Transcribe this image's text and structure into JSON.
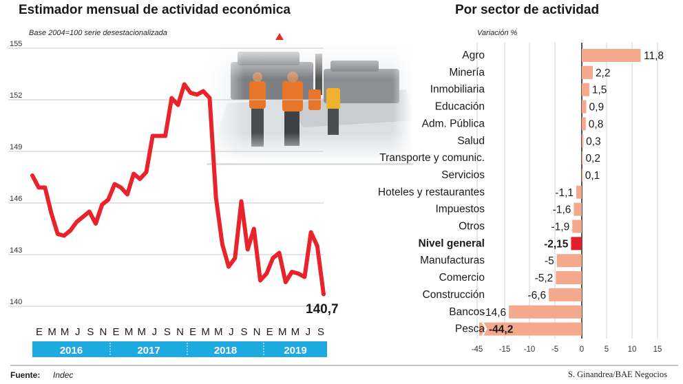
{
  "colors": {
    "line": "#e8232b",
    "bar": "#f4a88c",
    "bar_highlight": "#e0202a",
    "year_band": "#1ea9e1",
    "grid": "#c8c8c8"
  },
  "left_chart": {
    "title": "Estimador mensual de actividad económica",
    "subtitle": "Base 2004=100 serie desestacionalizada",
    "last_value_label": "140,7",
    "chart_data": {
      "type": "line",
      "y_ticks": [
        "155",
        "152",
        "149",
        "146",
        "143",
        "140"
      ],
      "ylim": [
        140,
        155
      ],
      "month_labels": [
        "E",
        "M",
        "M",
        "J",
        "S",
        "N",
        "E",
        "M",
        "M",
        "J",
        "S",
        "N",
        "E",
        "M",
        "M",
        "J",
        "S",
        "N",
        "E",
        "M",
        "M",
        "J",
        "S"
      ],
      "years": [
        "2016",
        "2017",
        "2018",
        "2019"
      ],
      "series": [
        {
          "values": [
            147.6,
            146.9,
            146.9,
            145.4,
            144.2,
            144.1,
            144.4,
            144.9,
            145.2,
            145.5,
            144.8,
            145.9,
            146.2,
            147.1,
            146.9,
            146.5,
            147.7,
            147.4,
            147.8,
            149.9,
            149.9,
            149.9,
            152.1,
            151.7,
            152.9,
            152.4,
            152.3,
            152.5,
            152.1,
            146.3,
            143.6,
            142.3,
            142.8,
            146.1,
            143.3,
            144.5,
            141.5,
            141.9,
            142.8,
            143.1,
            141.4,
            142.0,
            141.9,
            141.7,
            144.3,
            143.5,
            140.7
          ]
        }
      ]
    }
  },
  "right_chart": {
    "title": "Por sector de actividad",
    "subtitle": "Variación %",
    "chart_data": {
      "type": "bar",
      "orientation": "horizontal",
      "categories": [
        "Agro",
        "Minería",
        "Inmobiliaria",
        "Educación",
        "Adm. Pública",
        "Salud",
        "Transporte y comunic.",
        "Servicios",
        "Hoteles y restaurantes",
        "Impuestos",
        "Otros",
        "Nivel general",
        "Manufacturas",
        "Comercio",
        "Construcción",
        "Bancos",
        "Pesca"
      ],
      "value_labels": [
        "11,8",
        "2,2",
        "1,5",
        "0,9",
        "0,8",
        "0,3",
        "0,2",
        "0,1",
        "-1,1",
        "-1,6",
        "-1,9",
        "-2,15",
        "-5",
        "-5,2",
        "-6,6",
        "-14,6",
        "-44,2"
      ],
      "values": [
        11.8,
        2.2,
        1.5,
        0.9,
        0.8,
        0.3,
        0.2,
        0.1,
        -1.1,
        -1.6,
        -1.9,
        -2.15,
        -5,
        -5.2,
        -6.6,
        -14.6,
        -44.2
      ],
      "highlight": "Nivel general",
      "x_ticks": [
        "-45",
        "-15",
        "-10",
        "-5",
        "0",
        "5",
        "10",
        "15"
      ],
      "axis_break": true
    }
  },
  "footer": {
    "source_label": "Fuente:",
    "source_value": "Indec",
    "credit": "S. Ginandrea/BAE Negocios"
  }
}
